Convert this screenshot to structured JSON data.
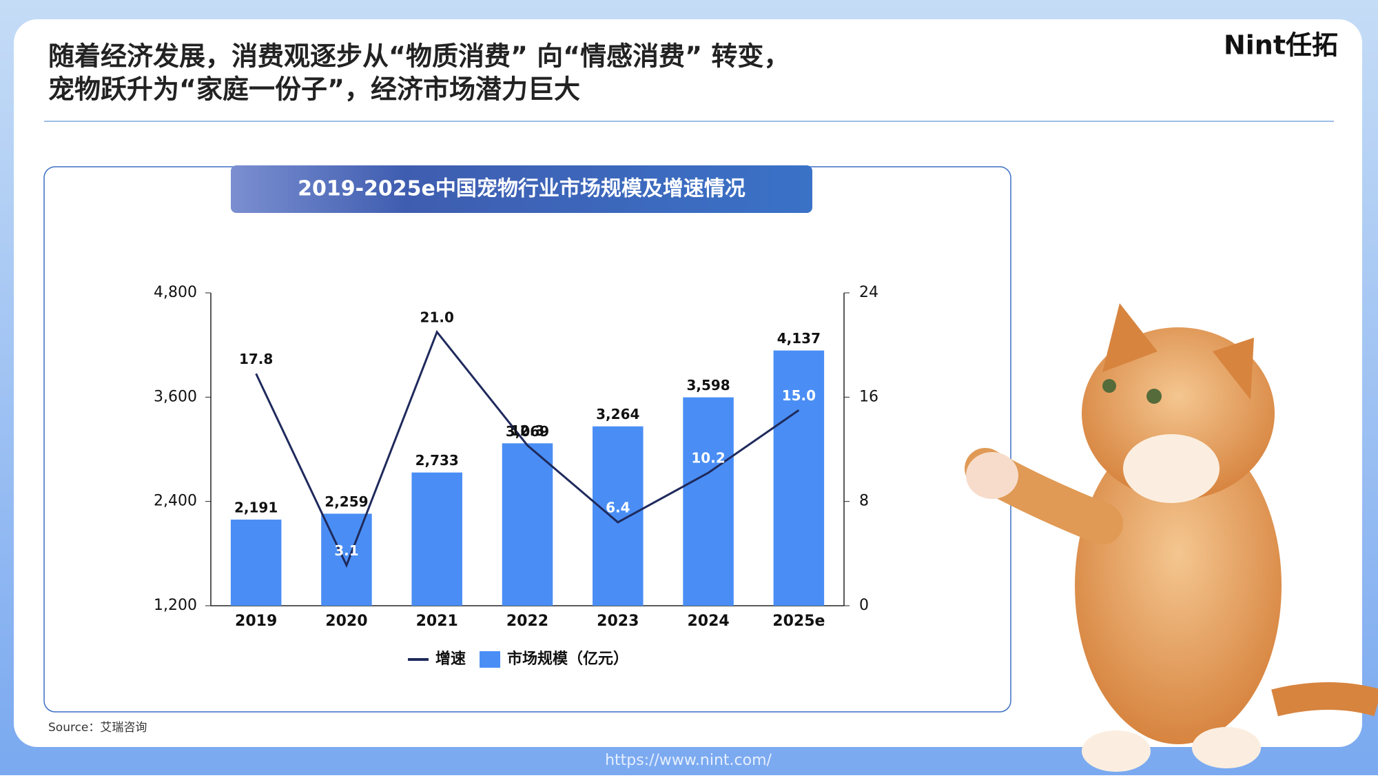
{
  "headline": [
    "随着经济发展，消费观逐步从“物质消费” 向“情感消费” 转变，",
    "宠物跃升为“家庭一份子”，经济市场潜力巨大"
  ],
  "logo": "Nint任拓",
  "source": "Source：艾瑞咨询",
  "url": "https://www.nint.com/",
  "chart_data": {
    "type": "bar-line",
    "title": "2019-2025e中国宠物行业市场规模及增速情况",
    "categories": [
      "2019",
      "2020",
      "2021",
      "2022",
      "2023",
      "2024",
      "2025e"
    ],
    "series": [
      {
        "name": "增速",
        "type": "line",
        "axis": "y2",
        "color": "#1f2a5c",
        "values": [
          17.8,
          3.1,
          21.0,
          12.3,
          6.4,
          10.2,
          15.0
        ],
        "value_labels": [
          "17.8",
          "3.1",
          "21.0",
          "12.3",
          "6.4",
          "10.2",
          "15.0"
        ]
      },
      {
        "name": "市场规模（亿元）",
        "type": "bar",
        "color": "#4a8ef5",
        "values": [
          2191,
          2259,
          2733,
          3069,
          3264,
          3598,
          4137
        ],
        "value_labels": [
          "2,191",
          "2,259",
          "2,733",
          "3,069",
          "3,264",
          "3,598",
          "4,137"
        ]
      }
    ],
    "ylim": [
      1200,
      4800
    ],
    "yticks": [
      {
        "value": 1200,
        "label": "1,200"
      },
      {
        "value": 2400,
        "label": "2,400"
      },
      {
        "value": 3600,
        "label": "3,600"
      },
      {
        "value": 4800,
        "label": "4,800"
      }
    ],
    "y2lim": [
      0,
      24
    ],
    "y2ticks": [
      0,
      8,
      16,
      24
    ]
  }
}
